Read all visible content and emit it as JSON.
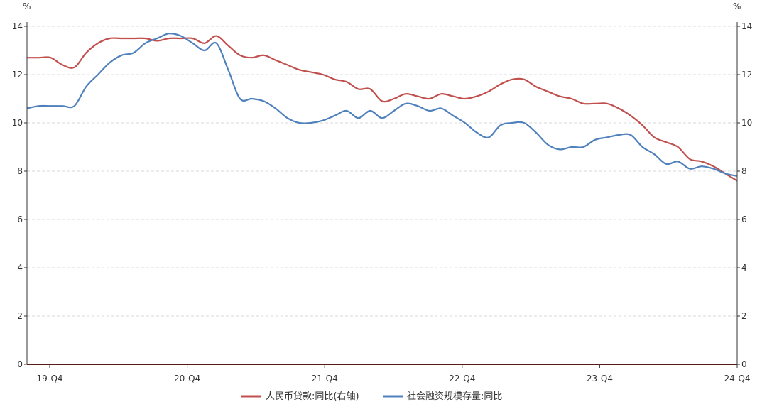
{
  "chart_data": {
    "type": "line",
    "left_axis": {
      "unit": "%",
      "ylim": [
        0,
        14
      ],
      "ticks": [
        "0",
        "2",
        "4",
        "6",
        "8",
        "10",
        "12",
        "14"
      ]
    },
    "right_axis": {
      "unit": "%",
      "ylim": [
        0,
        14
      ],
      "ticks": [
        "0",
        "2",
        "4",
        "6",
        "8",
        "10",
        "12",
        "14"
      ]
    },
    "x_axis": {
      "ticks": [
        "19-Q4",
        "20-Q4",
        "21-Q4",
        "22-Q4",
        "23-Q4",
        "24-Q4"
      ],
      "xlim": [
        0,
        60
      ]
    },
    "grid": "horizontal dashed",
    "legend_position": "bottom-center",
    "colors": {
      "loans": "#c0504d",
      "tsf": "#4f81bd",
      "axis": "#333333",
      "grid": "#d9d9d9"
    },
    "series": [
      {
        "name": "人民币贷款:同比(右轴)",
        "key": "loans",
        "axis": "right",
        "color": "#c0504d",
        "x": [
          0,
          1,
          2,
          3,
          4,
          5,
          6,
          7,
          8,
          9,
          10,
          11,
          12,
          13,
          14,
          15,
          16,
          17,
          18,
          19,
          20,
          21,
          22,
          23,
          24,
          25,
          26,
          27,
          28,
          29,
          30,
          31,
          32,
          33,
          34,
          35,
          36,
          37,
          38,
          39,
          40,
          41,
          42,
          43,
          44,
          45,
          46,
          47,
          48,
          49,
          50,
          51,
          52,
          53,
          54,
          55,
          56,
          57,
          58,
          59,
          60
        ],
        "values": [
          12.7,
          12.7,
          12.7,
          12.4,
          12.3,
          12.9,
          13.3,
          13.5,
          13.5,
          13.5,
          13.5,
          13.4,
          13.5,
          13.5,
          13.5,
          13.3,
          13.6,
          13.2,
          12.8,
          12.7,
          12.8,
          12.6,
          12.4,
          12.2,
          12.1,
          12.0,
          11.8,
          11.7,
          11.4,
          11.4,
          10.9,
          11.0,
          11.2,
          11.1,
          11.0,
          11.2,
          11.1,
          11.0,
          11.1,
          11.3,
          11.6,
          11.8,
          11.8,
          11.5,
          11.3,
          11.1,
          11.0,
          10.8,
          10.8,
          10.8,
          10.6,
          10.3,
          9.9,
          9.4,
          9.2,
          9.0,
          8.5,
          8.4,
          8.2,
          7.9,
          7.6
        ]
      },
      {
        "name": "社会融资规模存量:同比",
        "key": "tsf",
        "axis": "left",
        "color": "#4f81bd",
        "x": [
          0,
          1,
          2,
          3,
          4,
          5,
          6,
          7,
          8,
          9,
          10,
          11,
          12,
          13,
          14,
          15,
          16,
          17,
          18,
          19,
          20,
          21,
          22,
          23,
          24,
          25,
          26,
          27,
          28,
          29,
          30,
          31,
          32,
          33,
          34,
          35,
          36,
          37,
          38,
          39,
          40,
          41,
          42,
          43,
          44,
          45,
          46,
          47,
          48,
          49,
          50,
          51,
          52,
          53,
          54,
          55,
          56,
          57,
          58,
          59,
          60
        ],
        "values": [
          10.6,
          10.7,
          10.7,
          10.7,
          10.7,
          11.5,
          12.0,
          12.5,
          12.8,
          12.9,
          13.3,
          13.5,
          13.7,
          13.6,
          13.3,
          13.0,
          13.3,
          12.2,
          11.0,
          11.0,
          10.9,
          10.6,
          10.2,
          10.0,
          10.0,
          10.1,
          10.3,
          10.5,
          10.2,
          10.5,
          10.2,
          10.5,
          10.8,
          10.7,
          10.5,
          10.6,
          10.3,
          10.0,
          9.6,
          9.4,
          9.9,
          10.0,
          10.0,
          9.6,
          9.1,
          8.9,
          9.0,
          9.0,
          9.3,
          9.4,
          9.5,
          9.5,
          9.0,
          8.7,
          8.3,
          8.4,
          8.1,
          8.2,
          8.1,
          7.9,
          7.8
        ]
      }
    ]
  }
}
